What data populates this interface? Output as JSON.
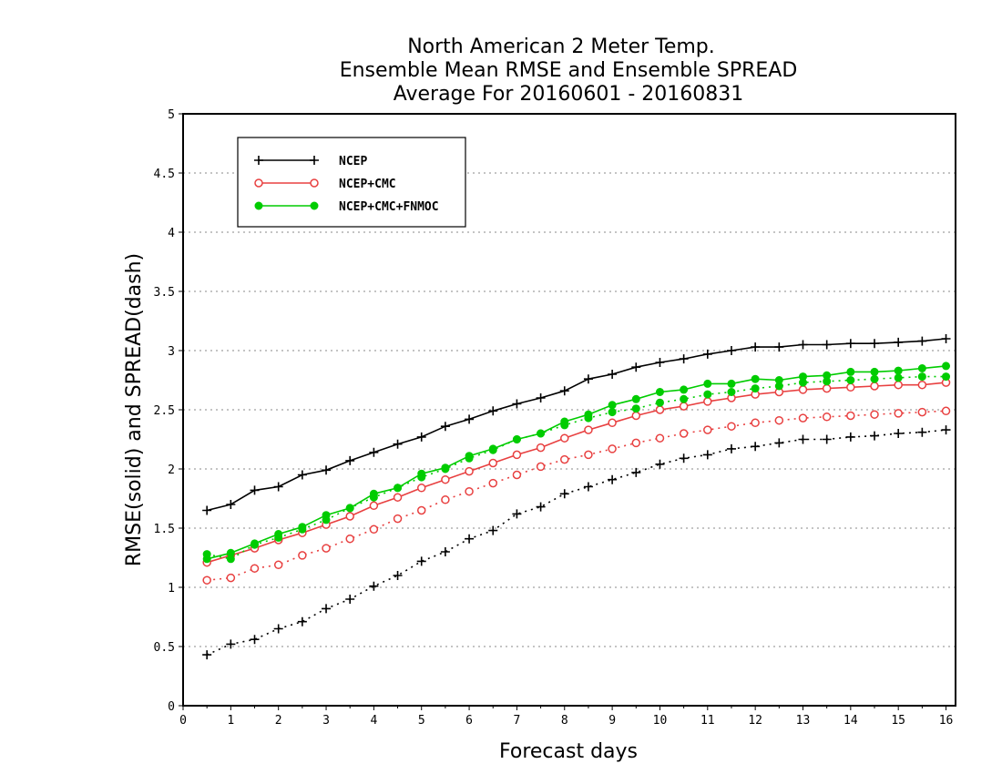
{
  "chart_data": {
    "type": "line",
    "title": [
      "North American 2 Meter Temp.",
      "Ensemble Mean RMSE and Ensemble SPREAD",
      "Average For 20160601 - 20160831"
    ],
    "xlabel": "Forecast days",
    "ylabel": "RMSE(solid) and SPREAD(dash)",
    "xlim": [
      0,
      16.2
    ],
    "ylim": [
      0,
      5
    ],
    "xticks": [
      "0",
      "1",
      "2",
      "3",
      "4",
      "5",
      "6",
      "7",
      "8",
      "9",
      "10",
      "11",
      "12",
      "13",
      "14",
      "15",
      "16"
    ],
    "yticks": [
      "0",
      "0.5",
      "1",
      "1.5",
      "2",
      "2.5",
      "3",
      "3.5",
      "4",
      "4.5",
      "5"
    ],
    "grid": "horizontal dotted",
    "legend_position": "top-left",
    "x": [
      0.5,
      1,
      1.5,
      2,
      2.5,
      3,
      3.5,
      4,
      4.5,
      5,
      5.5,
      6,
      6.5,
      7,
      7.5,
      8,
      8.5,
      9,
      9.5,
      10,
      10.5,
      11,
      11.5,
      12,
      12.5,
      13,
      13.5,
      14,
      14.5,
      15,
      15.5,
      16
    ],
    "series": [
      {
        "name": "NCEP",
        "color": "#000000",
        "marker": "plus",
        "rmse": [
          1.65,
          1.7,
          1.82,
          1.85,
          1.95,
          1.99,
          2.07,
          2.14,
          2.21,
          2.27,
          2.36,
          2.42,
          2.49,
          2.55,
          2.6,
          2.66,
          2.76,
          2.8,
          2.86,
          2.9,
          2.93,
          2.97,
          3.0,
          3.03,
          3.03,
          3.05,
          3.05,
          3.06,
          3.06,
          3.07,
          3.08,
          3.1
        ],
        "spread": [
          0.43,
          0.52,
          0.56,
          0.65,
          0.71,
          0.82,
          0.9,
          1.01,
          1.1,
          1.22,
          1.3,
          1.41,
          1.48,
          1.62,
          1.68,
          1.79,
          1.85,
          1.91,
          1.97,
          2.04,
          2.09,
          2.12,
          2.17,
          2.19,
          2.22,
          2.25,
          2.25,
          2.27,
          2.28,
          2.3,
          2.31,
          2.33
        ]
      },
      {
        "name": "NCEP+CMC",
        "color": "#e84040",
        "marker": "open-circle",
        "rmse": [
          1.21,
          1.27,
          1.33,
          1.4,
          1.46,
          1.53,
          1.6,
          1.69,
          1.76,
          1.84,
          1.91,
          1.98,
          2.05,
          2.12,
          2.18,
          2.26,
          2.33,
          2.39,
          2.45,
          2.5,
          2.53,
          2.57,
          2.6,
          2.63,
          2.65,
          2.67,
          2.68,
          2.69,
          2.7,
          2.71,
          2.71,
          2.73
        ],
        "spread": [
          1.06,
          1.08,
          1.16,
          1.19,
          1.27,
          1.33,
          1.41,
          1.49,
          1.58,
          1.65,
          1.74,
          1.81,
          1.88,
          1.95,
          2.02,
          2.08,
          2.12,
          2.17,
          2.22,
          2.26,
          2.3,
          2.33,
          2.36,
          2.39,
          2.41,
          2.43,
          2.44,
          2.45,
          2.46,
          2.47,
          2.48,
          2.49
        ]
      },
      {
        "name": "NCEP+CMC+FNMOC",
        "color": "#00cc00",
        "marker": "filled-circle",
        "rmse": [
          1.24,
          1.29,
          1.37,
          1.45,
          1.51,
          1.61,
          1.67,
          1.79,
          1.84,
          1.96,
          2.01,
          2.11,
          2.17,
          2.25,
          2.3,
          2.4,
          2.46,
          2.54,
          2.59,
          2.65,
          2.67,
          2.72,
          2.72,
          2.76,
          2.75,
          2.78,
          2.79,
          2.82,
          2.82,
          2.83,
          2.85,
          2.87
        ],
        "spread": [
          1.28,
          1.24,
          1.36,
          1.42,
          1.49,
          1.57,
          1.67,
          1.76,
          1.84,
          1.93,
          2.0,
          2.09,
          2.16,
          2.25,
          2.3,
          2.37,
          2.43,
          2.48,
          2.51,
          2.56,
          2.59,
          2.63,
          2.65,
          2.68,
          2.7,
          2.73,
          2.74,
          2.75,
          2.76,
          2.77,
          2.78,
          2.78
        ]
      }
    ]
  }
}
